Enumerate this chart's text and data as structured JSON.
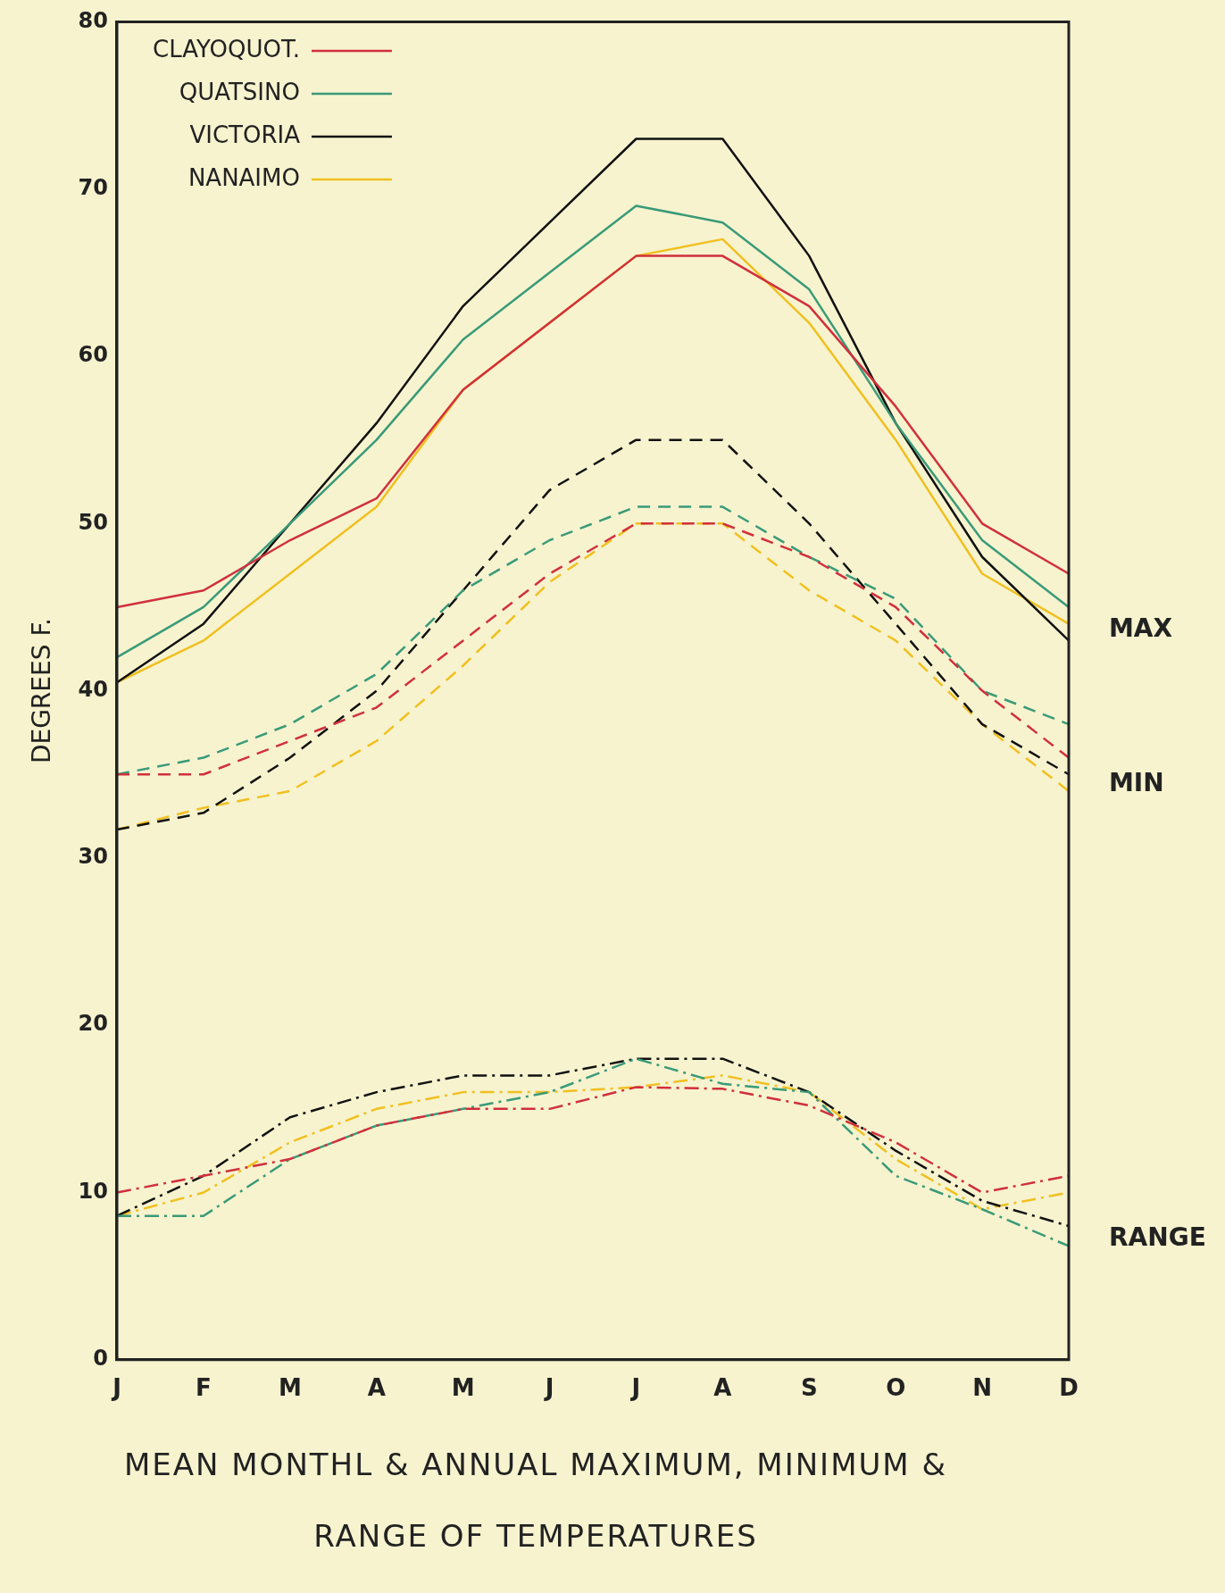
{
  "chart_data": {
    "type": "line",
    "title": "MEAN MONTHL & ANNUAL MAXIMUM, MINIMUM &\nRANGE OF TEMPERATURES",
    "ylabel": "DEGREES F.",
    "categories": [
      "J",
      "F",
      "M",
      "A",
      "M",
      "J",
      "J",
      "A",
      "S",
      "O",
      "N",
      "D"
    ],
    "ylim": [
      0,
      80
    ],
    "yticks": [
      0,
      10,
      20,
      30,
      40,
      50,
      60,
      70,
      80
    ],
    "grid": false,
    "legend": "top left",
    "marker": "none",
    "series": [
      {
        "name": "CLAYOQUOT.",
        "color": "#d0303c",
        "line_style": "solid",
        "values": [
          45,
          46,
          49,
          51.5,
          58,
          62,
          66,
          66,
          63,
          57,
          50,
          47
        ]
      },
      {
        "name": "QUATSINO",
        "color": "#3a9a78",
        "line_style": "solid",
        "values": [
          42,
          45,
          50,
          55,
          61,
          65,
          69,
          68,
          64,
          56,
          49,
          45
        ]
      },
      {
        "name": "VICTORIA",
        "color": "#111111",
        "line_style": "solid",
        "values": [
          40.5,
          44,
          50,
          56,
          63,
          68,
          73,
          73,
          66,
          56,
          48,
          43
        ]
      },
      {
        "name": "NANAIMO",
        "color": "#f0c020",
        "line_style": "solid",
        "values": [
          40.5,
          43,
          47,
          51,
          58,
          62,
          66,
          67,
          62,
          55,
          47,
          44
        ]
      },
      {
        "color": "#d0303c",
        "line_style": "dashed",
        "values": [
          35,
          35,
          37,
          39,
          43,
          47,
          50,
          50,
          48,
          45,
          40,
          36
        ]
      },
      {
        "color": "#3a9a78",
        "line_style": "dashed",
        "values": [
          35,
          36,
          38,
          41,
          46,
          49,
          51,
          51,
          48,
          45.5,
          40,
          38
        ]
      },
      {
        "color": "#111111",
        "line_style": "dashed",
        "values": [
          31.7,
          32.7,
          36,
          40,
          46,
          52,
          55,
          55,
          50,
          44,
          38,
          35
        ]
      },
      {
        "color": "#f0c020",
        "line_style": "dashed",
        "values": [
          31.7,
          33,
          34,
          37,
          41.5,
          46.5,
          50,
          50,
          46,
          43,
          38,
          34
        ]
      },
      {
        "color": "#d0303c",
        "line_style": "dashdot",
        "values": [
          10,
          11,
          12,
          14,
          15,
          15,
          16.3,
          16.2,
          15.2,
          13,
          10,
          11
        ]
      },
      {
        "color": "#3a9a78",
        "line_style": "dashdot",
        "values": [
          8.6,
          8.6,
          12,
          14,
          15,
          16,
          18,
          16.5,
          16,
          11,
          9,
          6.8
        ]
      },
      {
        "color": "#111111",
        "line_style": "dashdot",
        "values": [
          8.6,
          11,
          14.5,
          16,
          17,
          17,
          18,
          18,
          16,
          12.5,
          9.5,
          8
        ]
      },
      {
        "color": "#f0c020",
        "line_style": "dashdot",
        "values": [
          8.6,
          10,
          13,
          15,
          16,
          16,
          16.3,
          17,
          16,
          12,
          9,
          10
        ]
      }
    ],
    "annotations": [
      "MAX",
      "MIN",
      "RANGE"
    ]
  }
}
